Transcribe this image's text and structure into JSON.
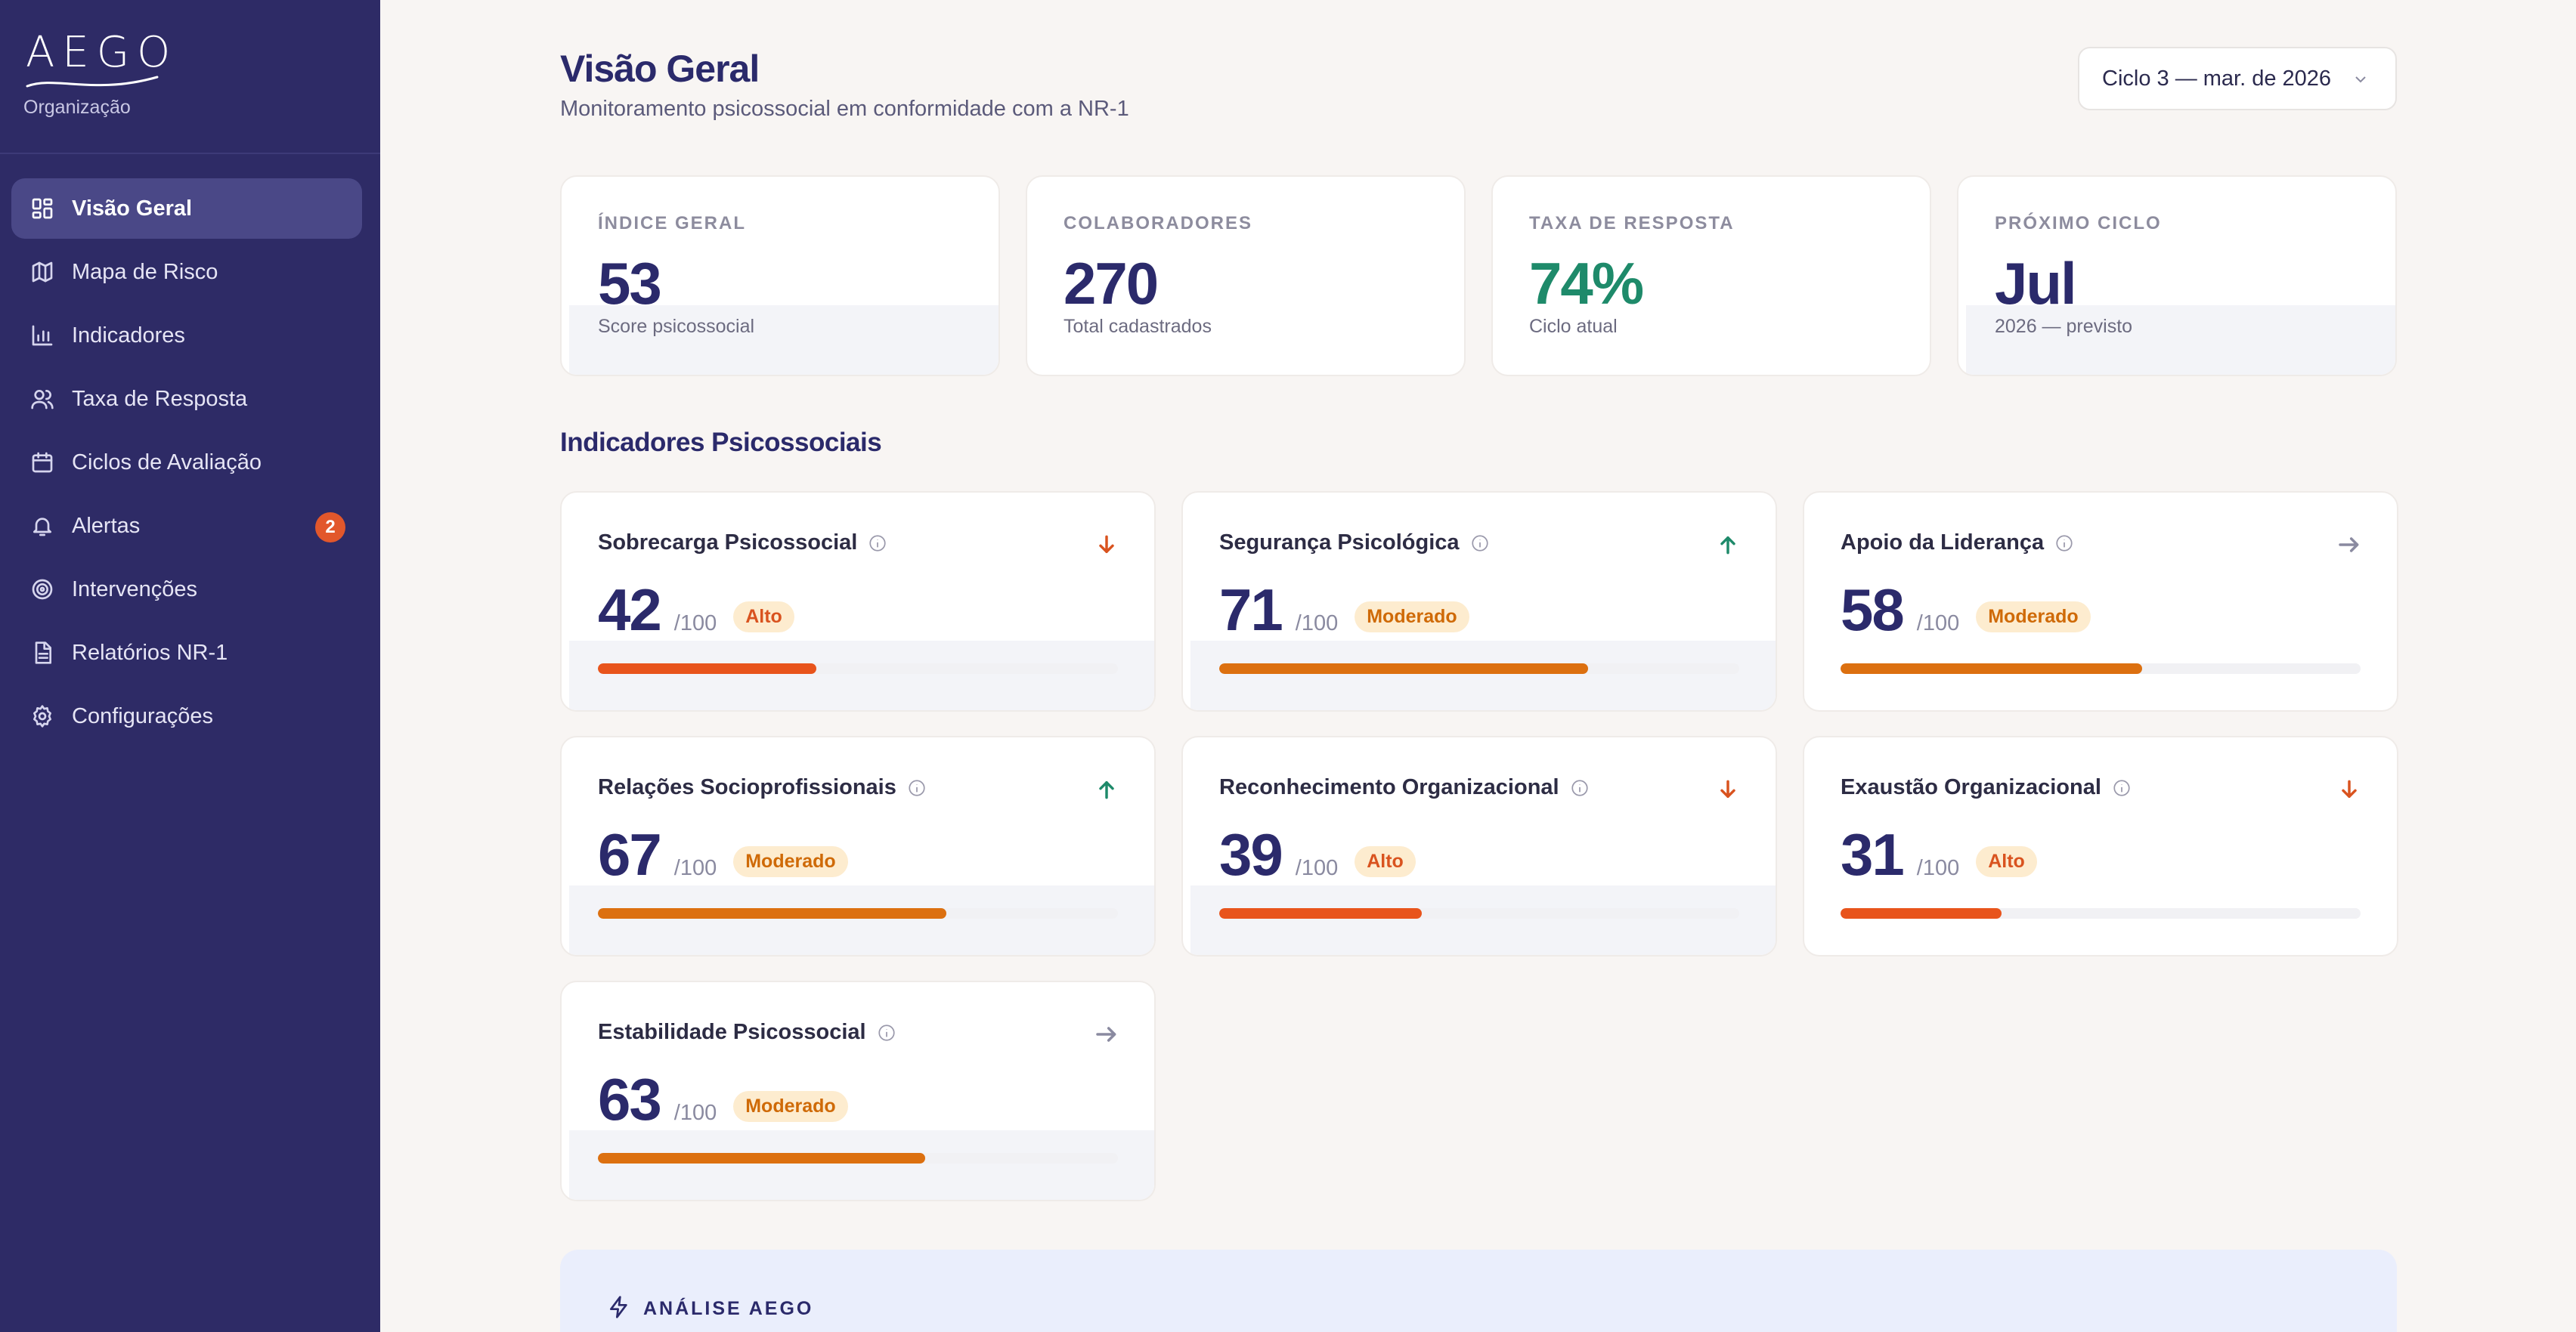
{
  "brand": {
    "logo_text": "AEGO",
    "org_label": "Organização"
  },
  "sidebar": {
    "items": [
      {
        "label": "Visão Geral",
        "icon": "grid-icon",
        "active": true
      },
      {
        "label": "Mapa de Risco",
        "icon": "map-icon"
      },
      {
        "label": "Indicadores",
        "icon": "bar-chart-icon"
      },
      {
        "label": "Taxa de Resposta",
        "icon": "users-icon"
      },
      {
        "label": "Ciclos de Avaliação",
        "icon": "calendar-icon"
      },
      {
        "label": "Alertas",
        "icon": "bell-icon",
        "badge": "2"
      },
      {
        "label": "Intervenções",
        "icon": "target-icon"
      },
      {
        "label": "Relatórios NR-1",
        "icon": "file-icon"
      },
      {
        "label": "Configurações",
        "icon": "gear-icon"
      }
    ]
  },
  "header": {
    "title": "Visão Geral",
    "subtitle": "Monitoramento psicossocial em conformidade com a NR-1",
    "cycle_select": "Ciclo 3 — mar. de 2026"
  },
  "kpis": [
    {
      "label": "ÍNDICE GERAL",
      "value": "53",
      "sub": "Score psicossocial"
    },
    {
      "label": "COLABORADORES",
      "value": "270",
      "sub": "Total cadastrados"
    },
    {
      "label": "TAXA DE RESPOSTA",
      "value": "74%",
      "sub": "Ciclo atual",
      "color": "#1e8a6a"
    },
    {
      "label": "PRÓXIMO CICLO",
      "value": "Jul",
      "sub": "2026 — previsto"
    }
  ],
  "indicators_title": "Indicadores Psicossociais",
  "indicators": [
    {
      "name": "Sobrecarga Psicossocial",
      "value": "42",
      "max": "/100",
      "level": "Alto",
      "trend": "down",
      "progress": 0.42,
      "bar_color": "#e8541c"
    },
    {
      "name": "Segurança Psicológica",
      "value": "71",
      "max": "/100",
      "level": "Moderado",
      "trend": "up",
      "progress": 0.71,
      "bar_color": "#dc7010"
    },
    {
      "name": "Apoio da Liderança",
      "value": "58",
      "max": "/100",
      "level": "Moderado",
      "trend": "flat",
      "progress": 0.58,
      "bar_color": "#dc7010"
    },
    {
      "name": "Relações Socioprofissionais",
      "value": "67",
      "max": "/100",
      "level": "Moderado",
      "trend": "up",
      "progress": 0.67,
      "bar_color": "#dc7010"
    },
    {
      "name": "Reconhecimento Organizacional",
      "value": "39",
      "max": "/100",
      "level": "Alto",
      "trend": "down",
      "progress": 0.39,
      "bar_color": "#e8541c"
    },
    {
      "name": "Exaustão Organizacional",
      "value": "31",
      "max": "/100",
      "level": "Alto",
      "trend": "down",
      "progress": 0.31,
      "bar_color": "#e8541c"
    },
    {
      "name": "Estabilidade Psicossocial",
      "value": "63",
      "max": "/100",
      "level": "Moderado",
      "trend": "flat",
      "progress": 0.63,
      "bar_color": "#dc7010"
    }
  ],
  "analysis": {
    "label": "ANÁLISE AEGO",
    "icon": "lightning-icon"
  }
}
